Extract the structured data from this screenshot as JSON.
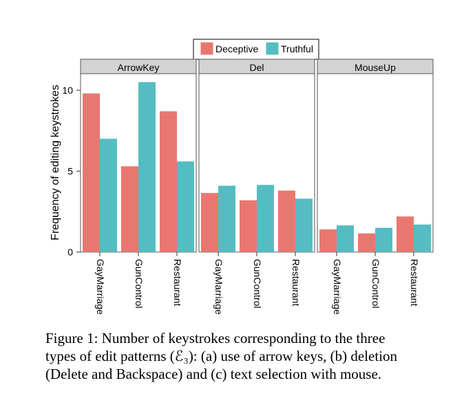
{
  "chart_data": {
    "type": "bar",
    "facets": [
      "ArrowKey",
      "Del",
      "MouseUp"
    ],
    "categories": [
      "GayMarriage",
      "GunControl",
      "Restaurant"
    ],
    "series": [
      {
        "name": "Deceptive",
        "color": "#e8786f",
        "values": {
          "ArrowKey": [
            9.8,
            5.3,
            8.7
          ],
          "Del": [
            3.65,
            3.2,
            3.8
          ],
          "MouseUp": [
            1.4,
            1.15,
            2.2
          ]
        }
      },
      {
        "name": "Truthful",
        "color": "#55bdc1",
        "values": {
          "ArrowKey": [
            7.0,
            10.5,
            5.6
          ],
          "Del": [
            4.1,
            4.15,
            3.3
          ],
          "MouseUp": [
            1.65,
            1.5,
            1.7
          ]
        }
      }
    ],
    "ylabel": "Frequency of editing keystrokes",
    "xlabel": "",
    "yticks": [
      0,
      5,
      10
    ],
    "ylim": [
      0,
      11.3
    ],
    "legend_position": "top-center",
    "grid": false
  },
  "caption": {
    "label": "Figure 1:",
    "lines": [
      "Number of keystrokes corresponding to the three",
      "types of edit patterns (ℰ₃): (a) use of arrow keys, (b) deletion",
      "(Delete and Backspace) and (c) text selection with mouse."
    ]
  }
}
